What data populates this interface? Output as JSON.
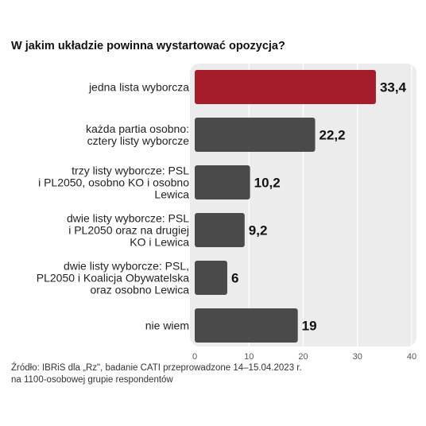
{
  "chart_data": {
    "type": "bar",
    "orientation": "horizontal",
    "title": "W jakim układzie powinna wystartować opozycja?",
    "categories": [
      [
        "jedna lista wyborcza"
      ],
      [
        "każda partia osobno:",
        "cztery listy wyborcze"
      ],
      [
        "trzy listy wyborcze: PSL",
        "i PL2050, osobno KO i osobno",
        "Lewica"
      ],
      [
        "dwie listy wyborcze: PSL",
        "i PL2050 oraz na drugiej",
        "KO i Lewica"
      ],
      [
        "dwie listy wyborcze: PSL,",
        "PL2050 i Koalicja Obywatelska",
        "oraz osobno Lewica"
      ],
      [
        "nie wiem"
      ]
    ],
    "values": [
      33.4,
      22.2,
      10.2,
      9.2,
      6,
      19
    ],
    "value_labels": [
      "33,4",
      "22,2",
      "10,2",
      "9,2",
      "6",
      "19"
    ],
    "xlim": [
      0,
      40
    ],
    "xticks": [
      0,
      10,
      20,
      30,
      40
    ],
    "grid": true,
    "colors": {
      "highlight": "#a51c2b",
      "default": "#4a4a4a",
      "panel": "#ececec",
      "grid": "#ffffff"
    },
    "highlight_index": 0
  },
  "source": {
    "line1": "Źródło: IBRiS dla „Rz\", badanie CATI przeprowadzone 14–15.04.2023 r.",
    "line2": "na 1100-osobowej grupie respondentów"
  }
}
